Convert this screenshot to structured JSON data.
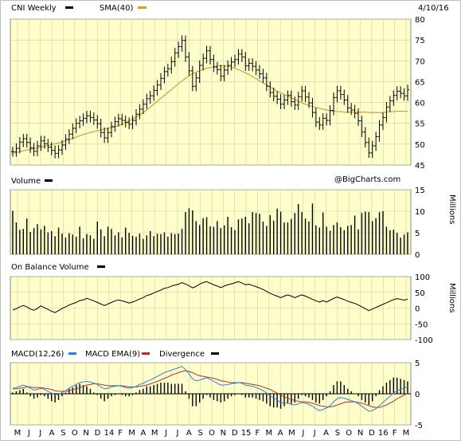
{
  "header": {
    "symbol_label": "CNI Weekly",
    "sma_label": "SMA(40)",
    "date": "4/10/16",
    "watermark": "@BigCharts.com"
  },
  "colors": {
    "panel_bg": "#ffffcc",
    "grid": "#cfcfa0",
    "bars": "#000000",
    "sma": "#c8a040",
    "macd": "#2f7fdc",
    "macd_ema": "#b03030"
  },
  "x_axis_labels": [
    "M",
    "J",
    "J",
    "A",
    "S",
    "O",
    "N",
    "D",
    "14",
    "F",
    "M",
    "A",
    "M",
    "J",
    "J",
    "A",
    "S",
    "O",
    "N",
    "D",
    "15",
    "F",
    "M",
    "A",
    "M",
    "J",
    "J",
    "A",
    "S",
    "O",
    "N",
    "D",
    "16",
    "F",
    "M"
  ],
  "chart_data": [
    {
      "type": "ohlc",
      "name": "price",
      "title": "CNI Weekly",
      "legend": [
        "CNI Weekly",
        "SMA(40)"
      ],
      "ylim": [
        45,
        80
      ],
      "yticks": [
        45,
        50,
        55,
        60,
        65,
        70,
        75,
        80
      ],
      "grid": true,
      "close": [
        48.2,
        49.0,
        50.5,
        51.3,
        50.4,
        49.1,
        48.3,
        49.6,
        50.8,
        50.1,
        49.3,
        48.5,
        47.8,
        48.6,
        49.8,
        51.2,
        52.4,
        53.8,
        55.0,
        55.6,
        56.2,
        56.8,
        56.4,
        55.8,
        54.9,
        52.8,
        51.5,
        52.8,
        54.2,
        55.4,
        56.1,
        55.7,
        55.2,
        54.8,
        55.7,
        57.2,
        58.4,
        59.6,
        60.9,
        61.6,
        62.9,
        64.2,
        65.8,
        67.4,
        68.1,
        69.8,
        71.9,
        73.4,
        74.9,
        70.9,
        67.6,
        63.9,
        65.9,
        68.9,
        70.6,
        72.4,
        70.3,
        68.5,
        67.9,
        66.3,
        67.8,
        68.9,
        69.7,
        70.3,
        71.6,
        70.9,
        68.8,
        69.4,
        68.7,
        67.8,
        66.9,
        65.9,
        63.9,
        62.4,
        61.5,
        60.8,
        59.6,
        60.6,
        61.7,
        60.2,
        59.4,
        61.4,
        62.8,
        61.3,
        59.9,
        57.6,
        55.3,
        54.6,
        56.2,
        55.7,
        58.1,
        61.2,
        62.8,
        61.9,
        60.6,
        58.7,
        58.2,
        57.4,
        55.6,
        52.9,
        50.4,
        47.9,
        49.6,
        51.8,
        54.6,
        56.4,
        58.9,
        60.4,
        61.7,
        62.7,
        62.2,
        61.6,
        63.1
      ],
      "sma": [
        47.8,
        48.0,
        48.2,
        48.4,
        48.6,
        48.8,
        48.9,
        49.1,
        49.3,
        49.5,
        49.7,
        49.9,
        50.1,
        50.3,
        50.5,
        50.8,
        51.1,
        51.4,
        51.7,
        52.0,
        52.3,
        52.6,
        52.8,
        53.0,
        53.2,
        53.4,
        53.6,
        53.8,
        54.0,
        54.2,
        54.5,
        54.8,
        55.2,
        55.6,
        56.0,
        56.5,
        57.0,
        57.6,
        58.2,
        58.9,
        59.6,
        60.3,
        61.0,
        61.7,
        62.4,
        63.1,
        63.8,
        64.5,
        65.2,
        65.8,
        66.4,
        66.9,
        67.3,
        67.6,
        67.9,
        68.2,
        68.4,
        68.6,
        68.7,
        68.8,
        68.8,
        68.7,
        68.5,
        68.2,
        67.9,
        67.5,
        67.1,
        66.7,
        66.2,
        65.7,
        65.2,
        64.7,
        64.2,
        63.7,
        63.2,
        62.7,
        62.3,
        61.9,
        61.5,
        61.1,
        60.7,
        60.3,
        59.9,
        59.6,
        59.3,
        59.0,
        58.8,
        58.6,
        58.4,
        58.2,
        58.0,
        57.9,
        57.8,
        57.8,
        57.7,
        57.7,
        57.7,
        57.7,
        57.7,
        57.7,
        57.7,
        57.6,
        57.6,
        57.6,
        57.6,
        57.6,
        57.7,
        57.8,
        57.8,
        57.9,
        57.9,
        57.9,
        57.9
      ]
    },
    {
      "type": "bar",
      "name": "volume",
      "title": "Volume",
      "ylabel": "Millions",
      "ylim": [
        0,
        15
      ],
      "yticks": [
        0,
        5,
        10,
        15
      ],
      "values": [
        10.1,
        7.4,
        5.7,
        5.9,
        8.3,
        5.2,
        6.1,
        7.0,
        5.8,
        6.6,
        5.1,
        5.4,
        4.2,
        6.2,
        4.8,
        3.9,
        4.9,
        4.6,
        4.1,
        6.4,
        3.7,
        4.7,
        4.4,
        3.6,
        7.6,
        5.8,
        4.2,
        6.4,
        5.9,
        4.4,
        5.1,
        3.9,
        6.2,
        5.0,
        4.3,
        4.1,
        4.8,
        3.6,
        4.4,
        5.4,
        4.2,
        4.8,
        4.7,
        5.1,
        4.1,
        4.9,
        4.7,
        4.8,
        5.9,
        9.8,
        10.7,
        10.2,
        7.7,
        6.8,
        8.4,
        8.6,
        6.5,
        6.4,
        7.7,
        6.1,
        6.7,
        8.7,
        6.3,
        5.6,
        8.1,
        8.3,
        8.7,
        7.2,
        9.8,
        9.6,
        9.4,
        7.6,
        6.6,
        9.1,
        7.8,
        10.6,
        9.9,
        7.4,
        7.4,
        8.2,
        9.6,
        11.7,
        9.8,
        8.3,
        7.6,
        11.8,
        6.7,
        6.2,
        9.7,
        6.4,
        5.5,
        6.8,
        7.4,
        6.3,
        5.6,
        6.6,
        6.8,
        9.0,
        5.8,
        9.6,
        9.9,
        9.8,
        7.7,
        8.4,
        9.8,
        10.0,
        6.4,
        5.6,
        5.7,
        5.0,
        3.9,
        4.6,
        5.1
      ]
    },
    {
      "type": "line",
      "name": "obv",
      "title": "On Balance Volume",
      "ylabel": "Millions",
      "ylim": [
        -100,
        100
      ],
      "yticks": [
        -100,
        -50,
        0,
        50,
        100
      ],
      "values": [
        -6,
        -2,
        4,
        8,
        4,
        -3,
        -7,
        -1,
        7,
        1,
        -4,
        -10,
        -14,
        -8,
        -1,
        4,
        10,
        14,
        18,
        24,
        26,
        31,
        27,
        23,
        18,
        13,
        8,
        13,
        18,
        23,
        26,
        23,
        20,
        16,
        19,
        24,
        29,
        33,
        40,
        43,
        48,
        53,
        57,
        63,
        65,
        70,
        73,
        76,
        81,
        76,
        71,
        64,
        69,
        76,
        81,
        84,
        79,
        74,
        70,
        65,
        70,
        74,
        77,
        80,
        84,
        80,
        74,
        76,
        72,
        68,
        64,
        59,
        53,
        47,
        42,
        38,
        33,
        38,
        42,
        38,
        33,
        38,
        42,
        38,
        33,
        28,
        23,
        19,
        24,
        19,
        25,
        31,
        35,
        31,
        27,
        22,
        18,
        15,
        10,
        4,
        -2,
        -8,
        -3,
        2,
        7,
        12,
        17,
        22,
        27,
        30,
        28,
        25,
        29
      ]
    },
    {
      "type": "macd",
      "name": "macd",
      "title": "MACD(12,26)",
      "legend": [
        "MACD(12,26)",
        "MACD EMA(9)",
        "Divergence"
      ],
      "ylim": [
        -5,
        5
      ],
      "yticks": [
        -5,
        0,
        5
      ],
      "macd": [
        0.9,
        1.0,
        1.2,
        1.4,
        1.2,
        0.9,
        0.6,
        0.7,
        0.9,
        0.7,
        0.4,
        0.1,
        -0.2,
        -0.1,
        0.2,
        0.5,
        0.9,
        1.2,
        1.5,
        1.8,
        1.9,
        2.0,
        1.9,
        1.7,
        1.5,
        1.1,
        0.8,
        0.9,
        1.1,
        1.2,
        1.3,
        1.2,
        1.0,
        0.9,
        1.0,
        1.2,
        1.5,
        1.7,
        2.0,
        2.2,
        2.5,
        2.8,
        3.1,
        3.4,
        3.6,
        3.8,
        4.0,
        4.2,
        4.4,
        3.9,
        3.2,
        2.4,
        2.1,
        2.2,
        2.4,
        2.6,
        2.3,
        2.0,
        1.7,
        1.4,
        1.4,
        1.5,
        1.6,
        1.7,
        1.8,
        1.7,
        1.4,
        1.3,
        1.2,
        1.0,
        0.8,
        0.5,
        0.1,
        -0.3,
        -0.7,
        -1.0,
        -1.4,
        -1.5,
        -1.5,
        -1.7,
        -1.8,
        -1.6,
        -1.4,
        -1.5,
        -1.7,
        -2.0,
        -2.4,
        -2.7,
        -2.5,
        -2.3,
        -1.9,
        -1.3,
        -0.8,
        -0.6,
        -0.7,
        -0.9,
        -1.1,
        -1.3,
        -1.6,
        -2.0,
        -2.4,
        -2.8,
        -2.7,
        -2.4,
        -1.9,
        -1.4,
        -0.9,
        -0.4,
        0.1,
        0.5,
        0.7,
        0.9,
        1.1
      ],
      "ema": [
        0.8,
        0.8,
        0.9,
        1.0,
        1.1,
        1.1,
        1.0,
        1.0,
        1.0,
        0.9,
        0.8,
        0.7,
        0.5,
        0.4,
        0.4,
        0.4,
        0.5,
        0.7,
        0.8,
        1.0,
        1.2,
        1.4,
        1.5,
        1.6,
        1.6,
        1.5,
        1.4,
        1.3,
        1.3,
        1.3,
        1.3,
        1.3,
        1.2,
        1.1,
        1.1,
        1.1,
        1.2,
        1.3,
        1.4,
        1.6,
        1.8,
        2.0,
        2.2,
        2.5,
        2.7,
        3.0,
        3.2,
        3.4,
        3.6,
        3.7,
        3.6,
        3.4,
        3.1,
        2.9,
        2.8,
        2.7,
        2.6,
        2.5,
        2.3,
        2.1,
        2.0,
        1.9,
        1.8,
        1.8,
        1.8,
        1.8,
        1.7,
        1.6,
        1.5,
        1.4,
        1.3,
        1.1,
        0.9,
        0.7,
        0.4,
        0.1,
        -0.2,
        -0.5,
        -0.7,
        -0.9,
        -1.1,
        -1.2,
        -1.3,
        -1.3,
        -1.4,
        -1.5,
        -1.7,
        -1.9,
        -2.0,
        -2.1,
        -2.1,
        -2.0,
        -1.8,
        -1.6,
        -1.4,
        -1.3,
        -1.3,
        -1.3,
        -1.4,
        -1.5,
        -1.7,
        -1.9,
        -2.1,
        -2.2,
        -2.2,
        -2.0,
        -1.8,
        -1.5,
        -1.2,
        -0.8,
        -0.5,
        -0.2,
        0.1
      ]
    }
  ]
}
